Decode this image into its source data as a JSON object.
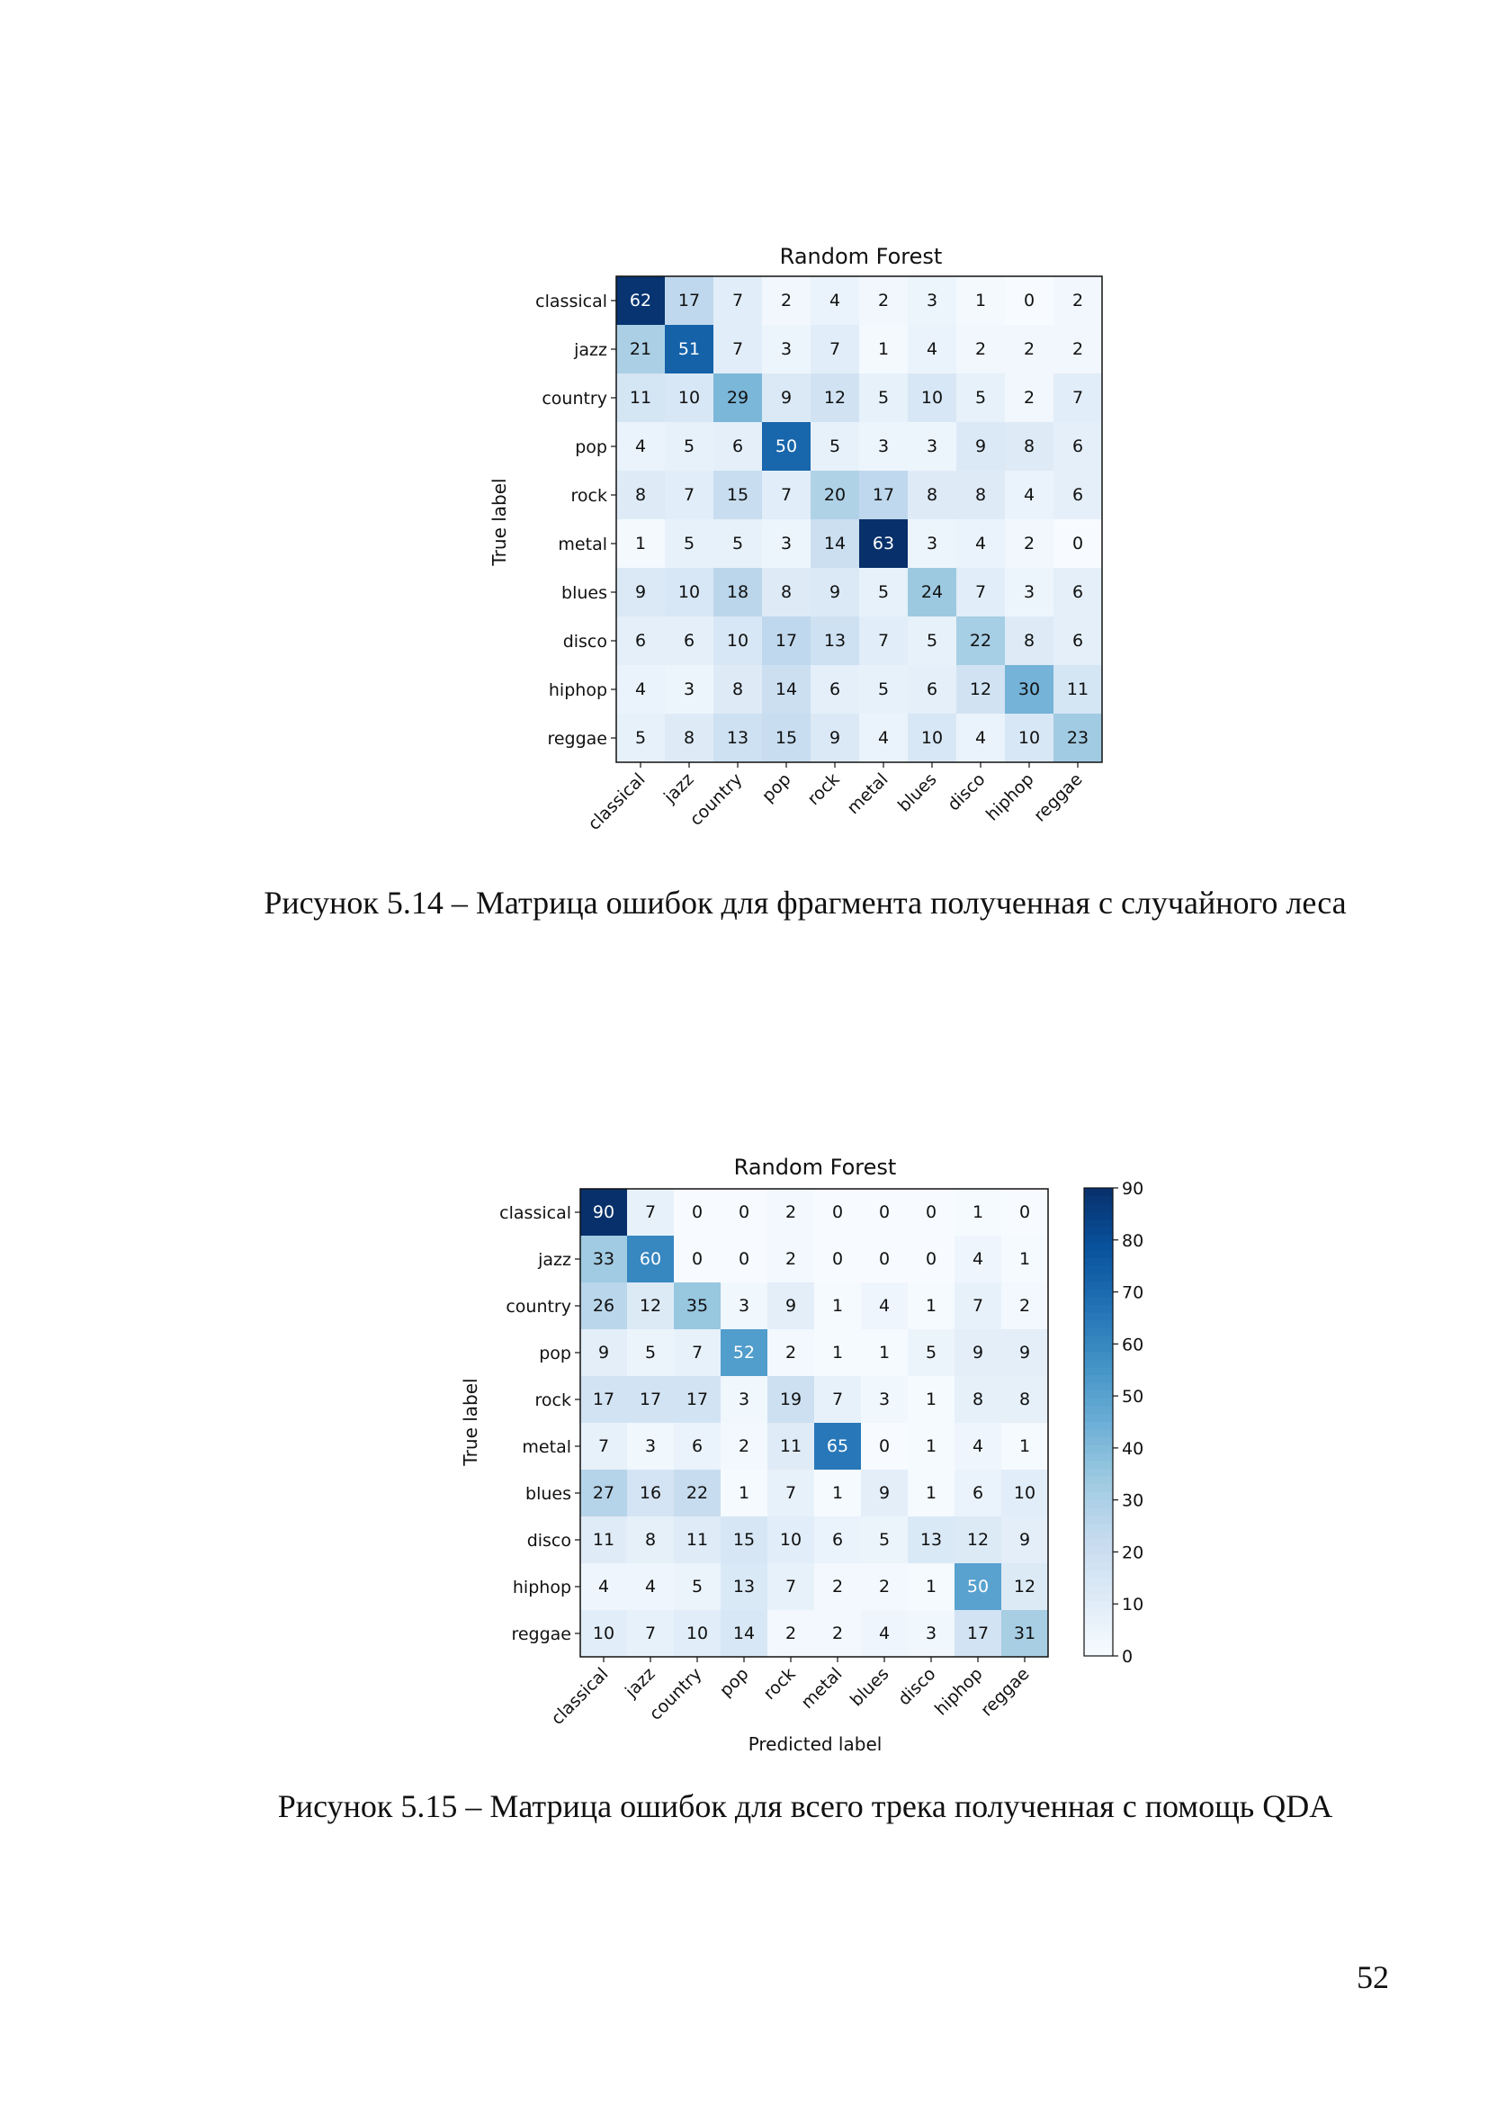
{
  "chart_data": [
    {
      "type": "heatmap",
      "title": "Random Forest",
      "xlabel": "",
      "ylabel": "True label",
      "categories": [
        "classical",
        "jazz",
        "country",
        "pop",
        "rock",
        "metal",
        "blues",
        "disco",
        "hiphop",
        "reggae"
      ],
      "matrix": [
        [
          62,
          17,
          7,
          2,
          4,
          2,
          3,
          1,
          0,
          2
        ],
        [
          21,
          51,
          7,
          3,
          7,
          1,
          4,
          2,
          2,
          2
        ],
        [
          11,
          10,
          29,
          9,
          12,
          5,
          10,
          5,
          2,
          7
        ],
        [
          4,
          5,
          6,
          50,
          5,
          3,
          3,
          9,
          8,
          6
        ],
        [
          8,
          7,
          15,
          7,
          20,
          17,
          8,
          8,
          4,
          6
        ],
        [
          1,
          5,
          5,
          3,
          14,
          63,
          3,
          4,
          2,
          0
        ],
        [
          9,
          10,
          18,
          8,
          9,
          5,
          24,
          7,
          3,
          6
        ],
        [
          6,
          6,
          10,
          17,
          13,
          7,
          5,
          22,
          8,
          6
        ],
        [
          4,
          3,
          8,
          14,
          6,
          5,
          6,
          12,
          30,
          11
        ],
        [
          5,
          8,
          13,
          15,
          9,
          4,
          10,
          4,
          10,
          23
        ]
      ],
      "colormap": "Blues",
      "colorbar": false,
      "caption": "Рисунок 5.14 – Матрица ошибок для фрагмента полученная с случайного леса"
    },
    {
      "type": "heatmap",
      "title": "Random Forest",
      "xlabel": "Predicted label",
      "ylabel": "True label",
      "categories": [
        "classical",
        "jazz",
        "country",
        "pop",
        "rock",
        "metal",
        "blues",
        "disco",
        "hiphop",
        "reggae"
      ],
      "matrix": [
        [
          90,
          7,
          0,
          0,
          2,
          0,
          0,
          0,
          1,
          0
        ],
        [
          33,
          60,
          0,
          0,
          2,
          0,
          0,
          0,
          4,
          1
        ],
        [
          26,
          12,
          35,
          3,
          9,
          1,
          4,
          1,
          7,
          2
        ],
        [
          9,
          5,
          7,
          52,
          2,
          1,
          1,
          5,
          9,
          9
        ],
        [
          17,
          17,
          17,
          3,
          19,
          7,
          3,
          1,
          8,
          8
        ],
        [
          7,
          3,
          6,
          2,
          11,
          65,
          0,
          1,
          4,
          1
        ],
        [
          27,
          16,
          22,
          1,
          7,
          1,
          9,
          1,
          6,
          10
        ],
        [
          11,
          8,
          11,
          15,
          10,
          6,
          5,
          13,
          12,
          9
        ],
        [
          4,
          4,
          5,
          13,
          7,
          2,
          2,
          1,
          50,
          12
        ],
        [
          10,
          7,
          10,
          14,
          2,
          2,
          4,
          3,
          17,
          31
        ]
      ],
      "colormap": "Blues",
      "colorbar": true,
      "colorbar_ticks": [
        0,
        10,
        20,
        30,
        40,
        50,
        60,
        70,
        80,
        90
      ],
      "caption": "Рисунок 5.15 – Матрица ошибок для всего трека полученная с помощь QDA"
    }
  ],
  "page": {
    "number": "52"
  }
}
